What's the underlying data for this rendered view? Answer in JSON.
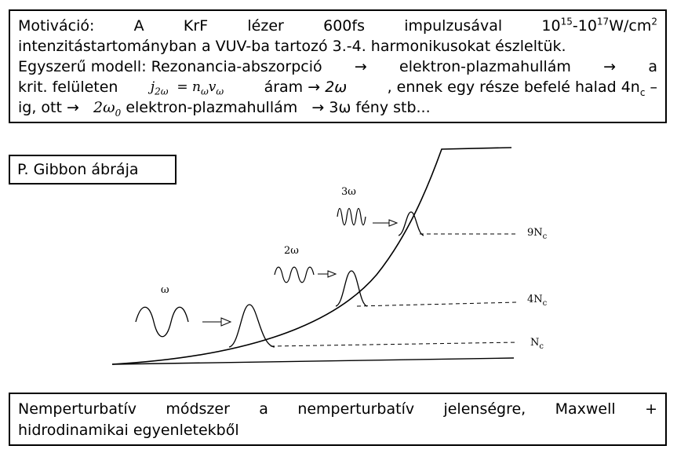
{
  "top_box": {
    "line1_words": [
      "Motiváció:",
      "A",
      "KrF",
      "lézer",
      "600fs",
      "impulzusával"
    ],
    "line1_range_a": "10",
    "line1_exp_a": "15",
    "line1_range_sep": "-10",
    "line1_exp_b": "17",
    "line1_unit": "W/cm",
    "line1_unit_exp": "2",
    "line2": "intenzitástartományban  a VUV-ba tartozó 3.-4. harmonikusokat észleltük.",
    "line3_a": "Egyszerű modell: Rezonancia-abszorpció",
    "arrow": "→",
    "line3_b": "elektron-plazmahullám",
    "line3_c": "a",
    "line4_a": "krit. felületen",
    "formula_j": "j",
    "formula_j_sub": "2ω",
    "formula_eq": "=",
    "formula_n": "n",
    "formula_n_sub": "ω",
    "formula_v": "v",
    "formula_v_sub": "ω",
    "line4_b": "áram",
    "line4_c": "2ω",
    "line4_d": ", ennek egy része befelé halad 4n",
    "line4_d_sub": "c",
    "line4_e": "–",
    "line5_a": "ig, ott",
    "line5_b": "2ω",
    "line5_b_sub": "0",
    "line5_c": "elektron-plazmahullám",
    "line5_d": "3ω fény stb..."
  },
  "figure_label": "P. Gibbon ábrája",
  "bottom_box": {
    "line1_words": [
      "Nemperturbatív",
      "módszer",
      "a",
      "nemperturbatív",
      "jelenségre,",
      "Maxwell",
      "+"
    ],
    "line2": "hidrodinamikai egyenletekből"
  },
  "diagram": {
    "wave_labels": [
      "ω",
      "2ω",
      "3ω"
    ],
    "level_labels": [
      {
        "main": "9N",
        "sub": "c"
      },
      {
        "main": "4N",
        "sub": "c"
      },
      {
        "main": "N",
        "sub": "c"
      }
    ]
  }
}
